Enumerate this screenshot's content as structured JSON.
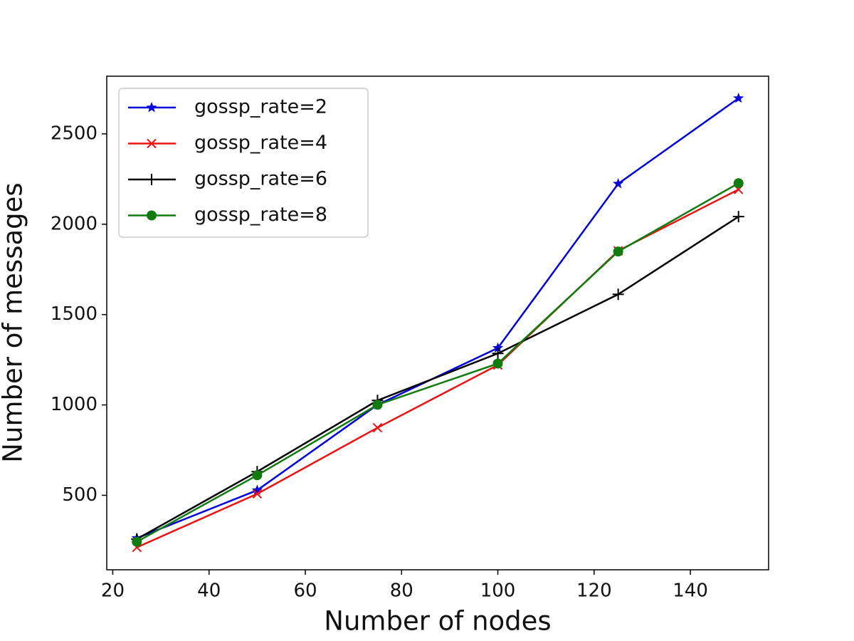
{
  "chart_data": {
    "type": "line",
    "x_label": "Number of nodes",
    "y_label": "Number of messages",
    "x": [
      25,
      50,
      75,
      100,
      125,
      150
    ],
    "series": [
      {
        "name": "gossp_rate=2",
        "color": "#0000dd",
        "marker": "star",
        "values": [
          263,
          528,
          1001,
          1315,
          2224,
          2697
        ]
      },
      {
        "name": "gossp_rate=4",
        "color": "#ee1111",
        "marker": "x",
        "values": [
          212,
          508,
          874,
          1221,
          1853,
          2192
        ]
      },
      {
        "name": "gossp_rate=6",
        "color": "#000000",
        "marker": "plus",
        "values": [
          258,
          631,
          1025,
          1285,
          1612,
          2042
        ]
      },
      {
        "name": "gossp_rate=8",
        "color": "#107c10",
        "marker": "circle",
        "values": [
          243,
          611,
          1001,
          1229,
          1849,
          2227
        ]
      }
    ],
    "xlim": [
      18.75,
      156.25
    ],
    "xticks": [
      20,
      40,
      60,
      80,
      100,
      120,
      140
    ],
    "ylim": [
      88,
      2819
    ],
    "yticks": [
      500,
      1000,
      1500,
      2000,
      2500
    ],
    "legend": "upper left",
    "grid": false
  }
}
